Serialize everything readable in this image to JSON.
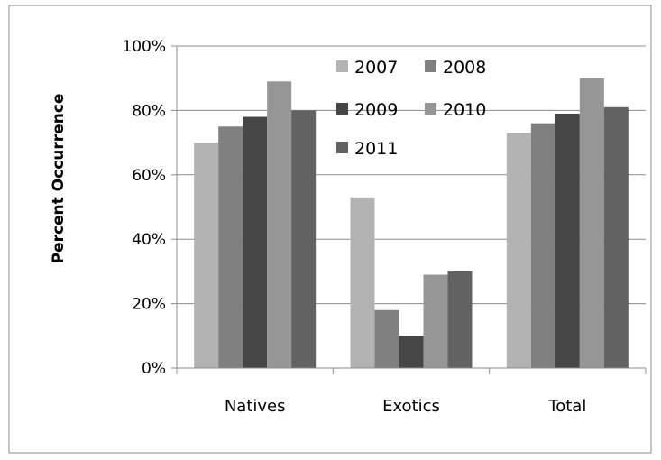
{
  "chart_data": {
    "type": "bar",
    "title": "",
    "xlabel": "",
    "ylabel": "Percent Occurrence",
    "ylim": [
      0,
      100
    ],
    "yticks": [
      "0%",
      "20%",
      "40%",
      "60%",
      "80%",
      "100%"
    ],
    "ytick_values": [
      0,
      20,
      40,
      60,
      80,
      100
    ],
    "categories": [
      "Natives",
      "Exotics",
      "Total"
    ],
    "series": [
      {
        "name": "2007",
        "values": [
          70,
          53,
          73
        ],
        "color": "#b3b3b3"
      },
      {
        "name": "2008",
        "values": [
          75,
          18,
          76
        ],
        "color": "#808080"
      },
      {
        "name": "2009",
        "values": [
          78,
          10,
          79
        ],
        "color": "#464646"
      },
      {
        "name": "2010",
        "values": [
          89,
          29,
          90
        ],
        "color": "#969696"
      },
      {
        "name": "2011",
        "values": [
          80,
          30,
          81
        ],
        "color": "#626262"
      }
    ],
    "grid": true,
    "legend_position": "top-center"
  }
}
